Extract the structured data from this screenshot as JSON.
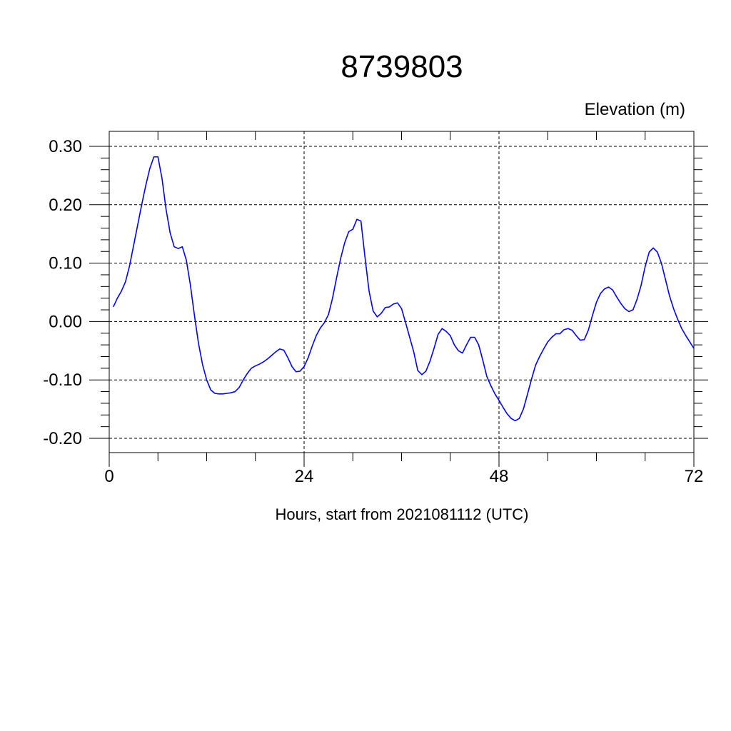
{
  "chart_data": {
    "type": "line",
    "title": "8739803",
    "ylabel": "Elevation (m)",
    "xlabel": "Hours, start from 2021081112 (UTC)",
    "xlim": [
      0,
      72
    ],
    "ylim": [
      -0.2,
      0.3
    ],
    "xticks": [
      0,
      24,
      48,
      72
    ],
    "xtick_labels": [
      "0",
      "24",
      "48",
      "72"
    ],
    "yticks": [
      -0.2,
      -0.1,
      0.0,
      0.1,
      0.2,
      0.3
    ],
    "ytick_labels": [
      "-0.20",
      "-0.10",
      "0.00",
      "0.10",
      "0.20",
      "0.30"
    ],
    "grid": true,
    "series_color": "#0000ff",
    "series": [
      {
        "x": [
          0.5,
          1,
          1.5,
          2,
          2.5,
          3,
          3.5,
          4,
          4.5,
          5,
          5.5,
          6,
          6.5,
          7,
          7.5,
          8,
          8.5,
          9,
          9.5,
          10,
          10.5,
          11,
          11.5,
          12,
          12.5,
          13,
          13.5,
          14,
          14.5,
          15,
          15.5,
          16,
          16.5,
          17,
          17.5,
          18,
          18.5,
          19,
          19.5,
          20,
          20.5,
          21,
          21.5,
          22,
          22.5,
          23,
          23.5,
          24,
          24.5,
          25,
          25.5,
          26,
          26.5,
          27,
          27.5,
          28,
          28.5,
          29,
          29.5,
          30,
          30.5,
          31,
          31.5,
          32,
          32.5,
          33,
          33.5,
          34,
          34.5,
          35,
          35.5,
          36,
          36.5,
          37,
          37.5,
          38,
          38.5,
          39,
          39.5,
          40,
          40.5,
          41,
          41.5,
          42,
          42.5,
          43,
          43.5,
          44,
          44.5,
          45,
          45.5,
          46,
          46.5,
          47,
          47.5,
          48,
          48.5,
          49,
          49.5,
          50,
          50.5,
          51,
          51.5,
          52,
          52.5,
          53,
          53.5,
          54,
          54.5,
          55,
          55.5,
          56,
          56.5,
          57,
          57.5,
          58,
          58.5,
          59,
          59.5,
          60,
          60.5,
          61,
          61.5,
          62,
          62.5,
          63,
          63.5,
          64,
          64.5,
          65,
          65.5,
          66,
          66.5,
          67,
          67.5,
          68,
          68.5,
          69,
          69.5,
          70,
          70.5,
          71,
          71.5,
          72
        ],
        "values": [
          0.025,
          0.04,
          0.052,
          0.068,
          0.095,
          0.13,
          0.165,
          0.2,
          0.233,
          0.262,
          0.282,
          0.282,
          0.245,
          0.192,
          0.152,
          0.128,
          0.125,
          0.128,
          0.105,
          0.062,
          0.01,
          -0.038,
          -0.074,
          -0.1,
          -0.117,
          -0.123,
          -0.124,
          -0.124,
          -0.123,
          -0.122,
          -0.12,
          -0.113,
          -0.1,
          -0.089,
          -0.08,
          -0.076,
          -0.073,
          -0.069,
          -0.064,
          -0.058,
          -0.052,
          -0.047,
          -0.049,
          -0.062,
          -0.077,
          -0.086,
          -0.085,
          -0.077,
          -0.062,
          -0.042,
          -0.024,
          -0.011,
          -0.002,
          0.012,
          0.04,
          0.075,
          0.108,
          0.135,
          0.154,
          0.158,
          0.175,
          0.172,
          0.11,
          0.052,
          0.018,
          0.008,
          0.014,
          0.024,
          0.025,
          0.03,
          0.032,
          0.022,
          -0.002,
          -0.027,
          -0.052,
          -0.084,
          -0.091,
          -0.085,
          -0.068,
          -0.046,
          -0.022,
          -0.012,
          -0.017,
          -0.024,
          -0.04,
          -0.05,
          -0.054,
          -0.04,
          -0.027,
          -0.027,
          -0.04,
          -0.066,
          -0.094,
          -0.11,
          -0.124,
          -0.135,
          -0.147,
          -0.158,
          -0.166,
          -0.17,
          -0.166,
          -0.15,
          -0.125,
          -0.099,
          -0.075,
          -0.06,
          -0.047,
          -0.035,
          -0.027,
          -0.021,
          -0.021,
          -0.014,
          -0.012,
          -0.015,
          -0.024,
          -0.032,
          -0.031,
          -0.015,
          0.01,
          0.033,
          0.048,
          0.056,
          0.059,
          0.054,
          0.042,
          0.031,
          0.022,
          0.017,
          0.02,
          0.038,
          0.062,
          0.094,
          0.119,
          0.126,
          0.119,
          0.1,
          0.072,
          0.044,
          0.022,
          0.004,
          -0.012,
          -0.024,
          -0.035,
          -0.046
        ]
      }
    ]
  }
}
